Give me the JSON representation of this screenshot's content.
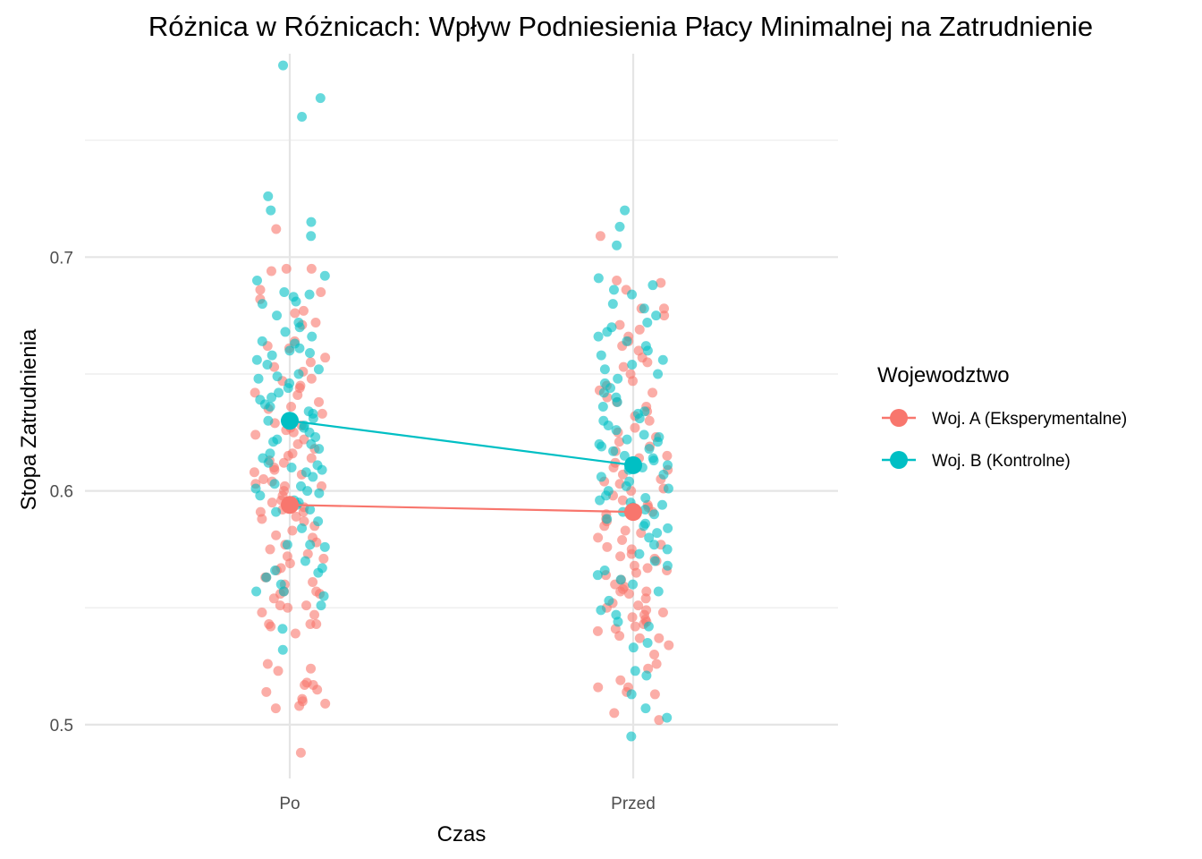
{
  "chart_data": {
    "type": "scatter",
    "title": "Różnica w Różnicach: Wpływ Podniesienia Płacy Minimalnej na Zatrudnienie",
    "xlabel": "Czas",
    "ylabel": "Stopa Zatrudnienia",
    "categories": [
      "Po",
      "Przed"
    ],
    "y_ticks": [
      "0.5",
      "0.6",
      "0.7"
    ],
    "y_tick_values": [
      0.5,
      0.6,
      0.7
    ],
    "ylim": [
      0.477,
      0.787
    ],
    "grid": true,
    "legend": {
      "title": "Wojewodztwo",
      "position": "right"
    },
    "series": [
      {
        "name": "Woj. A (Eksperymentalne)",
        "color": "#F8766D",
        "mean_values": [
          0.594,
          0.591
        ],
        "points": {
          "Po": [
            0.488,
            0.507,
            0.508,
            0.509,
            0.51,
            0.511,
            0.514,
            0.515,
            0.517,
            0.517,
            0.518,
            0.523,
            0.524,
            0.526,
            0.539,
            0.542,
            0.543,
            0.543,
            0.543,
            0.547,
            0.548,
            0.55,
            0.551,
            0.551,
            0.554,
            0.556,
            0.556,
            0.557,
            0.557,
            0.56,
            0.561,
            0.563,
            0.563,
            0.566,
            0.567,
            0.569,
            0.571,
            0.572,
            0.573,
            0.575,
            0.577,
            0.578,
            0.58,
            0.581,
            0.583,
            0.585,
            0.587,
            0.588,
            0.589,
            0.591,
            0.591,
            0.592,
            0.593,
            0.595,
            0.596,
            0.598,
            0.6,
            0.602,
            0.602,
            0.603,
            0.604,
            0.605,
            0.607,
            0.608,
            0.609,
            0.61,
            0.612,
            0.613,
            0.614,
            0.615,
            0.616,
            0.618,
            0.62,
            0.622,
            0.624,
            0.625,
            0.626,
            0.627,
            0.628,
            0.629,
            0.631,
            0.633,
            0.635,
            0.636,
            0.638,
            0.641,
            0.642,
            0.644,
            0.645,
            0.647,
            0.648,
            0.651,
            0.653,
            0.655,
            0.657,
            0.661,
            0.662,
            0.664,
            0.671,
            0.672,
            0.676,
            0.677,
            0.682,
            0.685,
            0.686,
            0.694,
            0.695,
            0.695,
            0.712
          ],
          "Przed": [
            0.502,
            0.505,
            0.513,
            0.514,
            0.516,
            0.516,
            0.519,
            0.524,
            0.526,
            0.53,
            0.534,
            0.537,
            0.537,
            0.538,
            0.54,
            0.541,
            0.542,
            0.543,
            0.544,
            0.545,
            0.546,
            0.547,
            0.548,
            0.549,
            0.55,
            0.551,
            0.552,
            0.554,
            0.556,
            0.557,
            0.557,
            0.558,
            0.559,
            0.56,
            0.562,
            0.564,
            0.565,
            0.566,
            0.567,
            0.568,
            0.57,
            0.571,
            0.572,
            0.573,
            0.575,
            0.576,
            0.577,
            0.579,
            0.58,
            0.582,
            0.583,
            0.585,
            0.587,
            0.588,
            0.59,
            0.591,
            0.593,
            0.594,
            0.596,
            0.598,
            0.6,
            0.601,
            0.603,
            0.604,
            0.605,
            0.607,
            0.609,
            0.61,
            0.612,
            0.614,
            0.615,
            0.617,
            0.619,
            0.621,
            0.623,
            0.625,
            0.627,
            0.63,
            0.632,
            0.634,
            0.636,
            0.638,
            0.64,
            0.642,
            0.643,
            0.645,
            0.647,
            0.65,
            0.653,
            0.655,
            0.657,
            0.66,
            0.662,
            0.664,
            0.666,
            0.669,
            0.671,
            0.675,
            0.678,
            0.678,
            0.686,
            0.689,
            0.69,
            0.709
          ]
        }
      },
      {
        "name": "Woj. B (Kontrolne)",
        "color": "#00BFC4",
        "mean_values": [
          0.63,
          0.611
        ],
        "points": {
          "Po": [
            0.532,
            0.541,
            0.551,
            0.555,
            0.557,
            0.557,
            0.56,
            0.563,
            0.565,
            0.566,
            0.567,
            0.57,
            0.576,
            0.577,
            0.577,
            0.584,
            0.587,
            0.591,
            0.592,
            0.594,
            0.595,
            0.596,
            0.598,
            0.599,
            0.6,
            0.601,
            0.602,
            0.603,
            0.606,
            0.608,
            0.609,
            0.61,
            0.611,
            0.612,
            0.614,
            0.616,
            0.618,
            0.62,
            0.621,
            0.622,
            0.623,
            0.625,
            0.627,
            0.628,
            0.63,
            0.631,
            0.633,
            0.634,
            0.636,
            0.637,
            0.639,
            0.64,
            0.642,
            0.644,
            0.646,
            0.648,
            0.649,
            0.65,
            0.652,
            0.654,
            0.656,
            0.658,
            0.659,
            0.66,
            0.661,
            0.663,
            0.664,
            0.666,
            0.668,
            0.67,
            0.672,
            0.675,
            0.68,
            0.681,
            0.683,
            0.684,
            0.685,
            0.69,
            0.692,
            0.709,
            0.715,
            0.72,
            0.726,
            0.76,
            0.768,
            0.782
          ],
          "Przed": [
            0.495,
            0.503,
            0.507,
            0.513,
            0.521,
            0.523,
            0.533,
            0.535,
            0.542,
            0.544,
            0.547,
            0.549,
            0.553,
            0.557,
            0.56,
            0.562,
            0.564,
            0.566,
            0.568,
            0.57,
            0.573,
            0.575,
            0.577,
            0.58,
            0.582,
            0.584,
            0.585,
            0.586,
            0.588,
            0.59,
            0.591,
            0.592,
            0.593,
            0.594,
            0.595,
            0.596,
            0.597,
            0.598,
            0.6,
            0.601,
            0.602,
            0.604,
            0.606,
            0.607,
            0.609,
            0.61,
            0.611,
            0.613,
            0.614,
            0.615,
            0.617,
            0.618,
            0.619,
            0.62,
            0.621,
            0.622,
            0.623,
            0.624,
            0.626,
            0.628,
            0.63,
            0.631,
            0.633,
            0.634,
            0.636,
            0.638,
            0.64,
            0.642,
            0.644,
            0.646,
            0.648,
            0.65,
            0.652,
            0.654,
            0.656,
            0.658,
            0.66,
            0.662,
            0.664,
            0.666,
            0.668,
            0.67,
            0.672,
            0.675,
            0.678,
            0.68,
            0.684,
            0.686,
            0.688,
            0.691,
            0.705,
            0.713,
            0.72
          ]
        }
      }
    ]
  }
}
